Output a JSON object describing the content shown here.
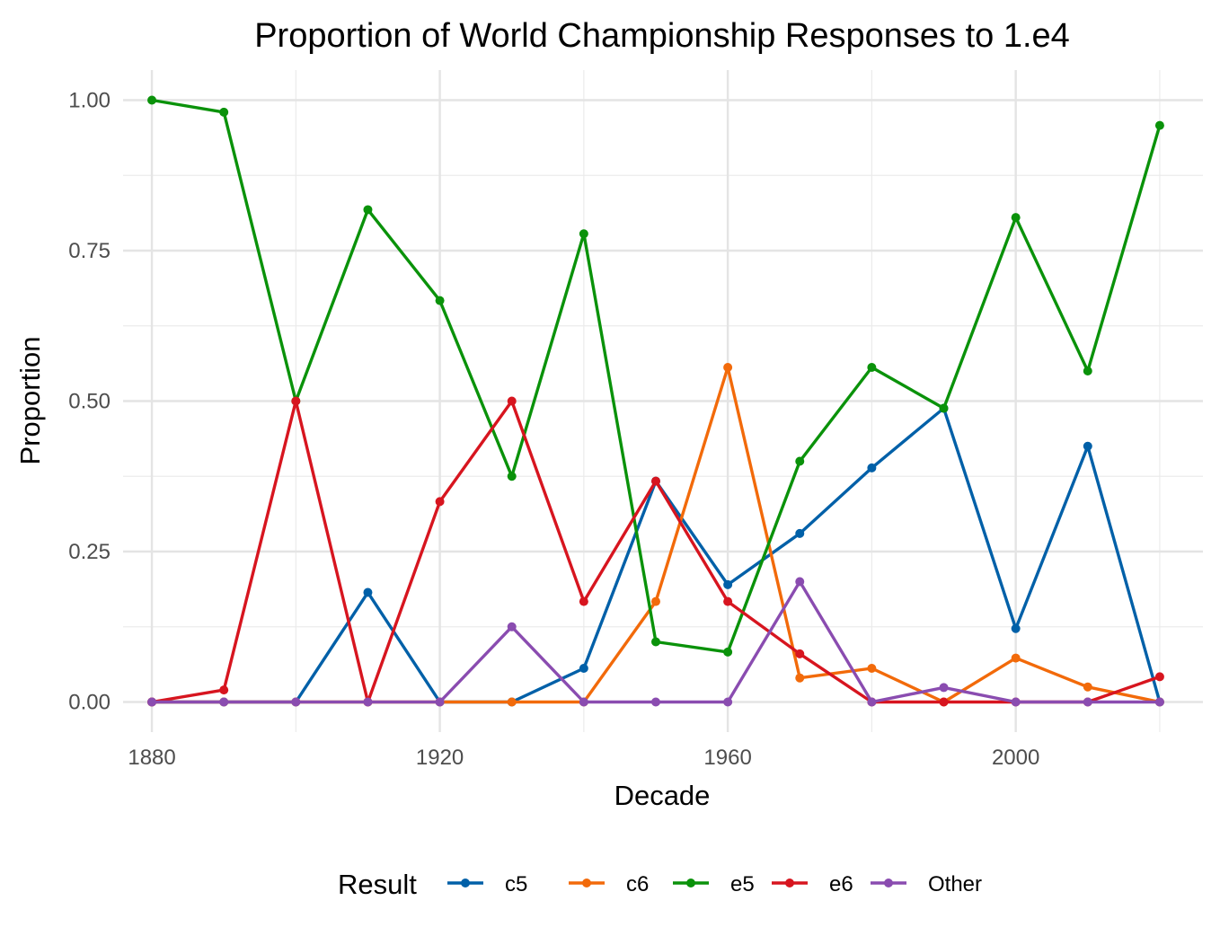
{
  "chart_data": {
    "type": "line",
    "title": "Proportion of World Championship Responses to 1.e4",
    "xlabel": "Decade",
    "ylabel": "Proportion",
    "xlim": [
      1876,
      2026
    ],
    "ylim": [
      -0.05,
      1.05
    ],
    "x_ticks": [
      1880,
      1920,
      1960,
      2000
    ],
    "x_tick_labels": [
      "1880",
      "1920",
      "1960",
      "2000"
    ],
    "y_ticks": [
      0,
      0.25,
      0.5,
      0.75,
      1.0
    ],
    "y_tick_labels": [
      "0.00",
      "0.25",
      "0.50",
      "0.75",
      "1.00"
    ],
    "y_minor_ticks": [
      0.125,
      0.375,
      0.625,
      0.875
    ],
    "x_minor_ticks": [
      1900,
      1940,
      1980,
      2020
    ],
    "grid": true,
    "legend": {
      "title": "Result",
      "placement": "bottom"
    },
    "x": [
      1880,
      1890,
      1900,
      1910,
      1920,
      1930,
      1940,
      1950,
      1960,
      1970,
      1980,
      1990,
      2000,
      2010,
      2020
    ],
    "series": [
      {
        "name": "c5",
        "color": "#0060a8",
        "values": [
          0,
          0,
          0,
          0.182,
          0,
          0,
          0.056,
          0.367,
          0.195,
          0.28,
          0.389,
          0.488,
          0.122,
          0.425,
          0
        ]
      },
      {
        "name": "c6",
        "color": "#f26a0a",
        "values": [
          0,
          0,
          0,
          0,
          0,
          0,
          0,
          0.167,
          0.556,
          0.04,
          0.056,
          0,
          0.073,
          0.025,
          0
        ]
      },
      {
        "name": "e5",
        "color": "#0a920a",
        "values": [
          1.0,
          0.98,
          0.5,
          0.818,
          0.667,
          0.375,
          0.778,
          0.1,
          0.083,
          0.4,
          0.556,
          0.488,
          0.805,
          0.55,
          0.958
        ]
      },
      {
        "name": "e6",
        "color": "#d7151f",
        "values": [
          0,
          0.02,
          0.5,
          0,
          0.333,
          0.5,
          0.167,
          0.367,
          0.167,
          0.08,
          0,
          0,
          0,
          0,
          0.042
        ]
      },
      {
        "name": "Other",
        "color": "#8a4cb0",
        "values": [
          0,
          0,
          0,
          0,
          0,
          0.125,
          0,
          0,
          0,
          0.2,
          0,
          0.024,
          0,
          0,
          0
        ]
      }
    ]
  }
}
